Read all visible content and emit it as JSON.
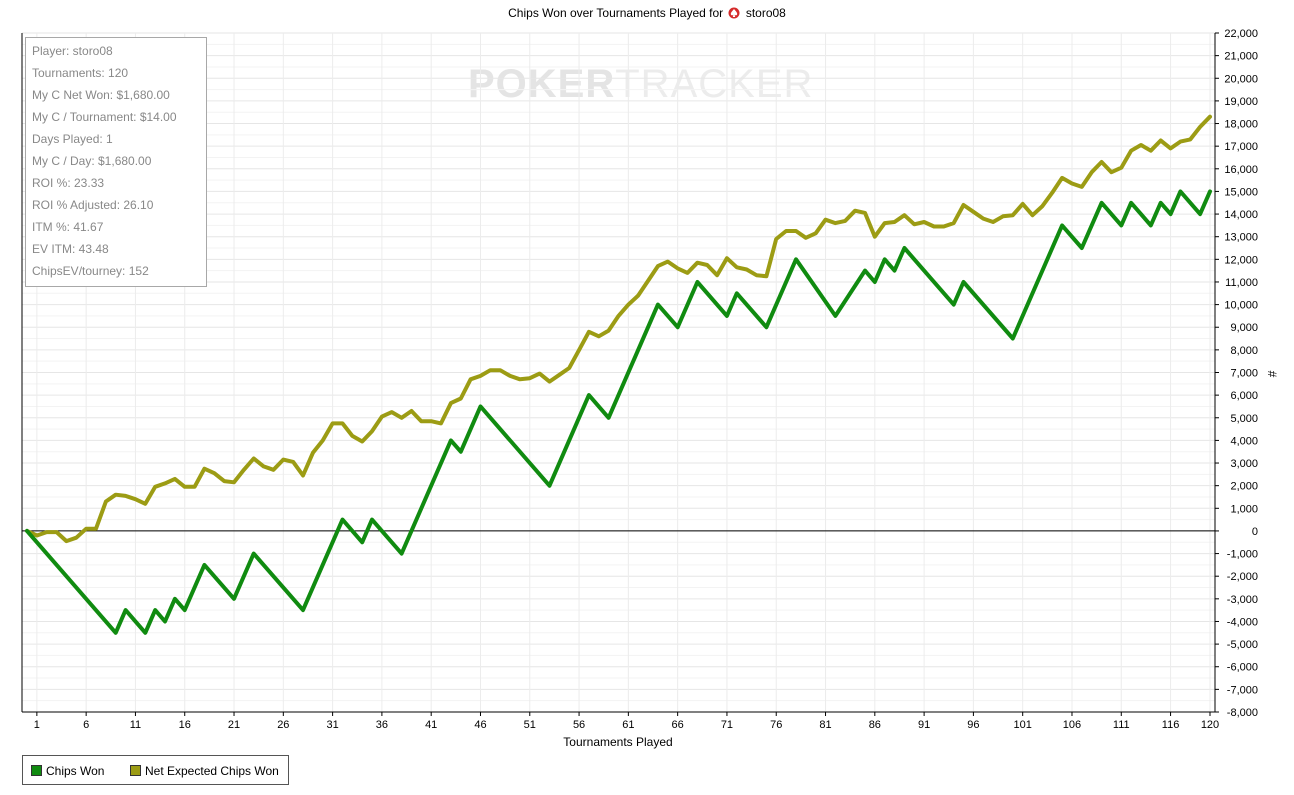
{
  "title": {
    "text": "Chips Won over Tournaments Played for",
    "player": "storo08",
    "icon": "pokerstars-spade-icon"
  },
  "watermark": {
    "part1": "POKER",
    "part2": "TRACKER"
  },
  "stats": [
    "Player: storo08",
    "Tournaments: 120",
    "My C Net Won: $1,680.00",
    "My C / Tournament: $14.00",
    "Days Played: 1",
    "My C / Day: $1,680.00",
    "ROI %: 23.33",
    "ROI % Adjusted: 26.10",
    "ITM %: 41.67",
    "EV ITM: 43.48",
    "ChipsEV/tourney: 152"
  ],
  "legend": [
    {
      "label": "Chips Won",
      "color": "#108b10"
    },
    {
      "label": "Net Expected Chips Won",
      "color": "#9c9c14"
    }
  ],
  "chart_data": {
    "type": "line",
    "title": "Chips Won over Tournaments Played for storo08",
    "xlabel": "Tournaments Played",
    "ylabel": "#",
    "xlim": [
      0,
      120
    ],
    "ylim": [
      -8000,
      22000
    ],
    "x_ticks": [
      "1",
      "6",
      "11",
      "16",
      "21",
      "26",
      "31",
      "36",
      "41",
      "46",
      "51",
      "56",
      "61",
      "66",
      "71",
      "76",
      "81",
      "86",
      "91",
      "96",
      "101",
      "106",
      "111",
      "116",
      "120"
    ],
    "y_ticks": [
      "-8,000",
      "-7,000",
      "-6,000",
      "-5,000",
      "-4,000",
      "-3,000",
      "-2,000",
      "-1,000",
      "0",
      "1,000",
      "2,000",
      "3,000",
      "4,000",
      "5,000",
      "6,000",
      "7,000",
      "8,000",
      "9,000",
      "10,000",
      "11,000",
      "12,000",
      "13,000",
      "14,000",
      "15,000",
      "16,000",
      "17,000",
      "18,000",
      "19,000",
      "20,000",
      "21,000",
      "22,000"
    ],
    "grid": true,
    "legend_position": "bottom-left",
    "series": [
      {
        "name": "Chips Won",
        "color": "#108b10",
        "points": [
          [
            0,
            0
          ],
          [
            9,
            -4500
          ],
          [
            10,
            -3500
          ],
          [
            12,
            -4500
          ],
          [
            13,
            -3500
          ],
          [
            14,
            -4000
          ],
          [
            15,
            -3000
          ],
          [
            16,
            -3500
          ],
          [
            18,
            -1500
          ],
          [
            21,
            -3000
          ],
          [
            23,
            -1000
          ],
          [
            28,
            -3500
          ],
          [
            32,
            500
          ],
          [
            34,
            -500
          ],
          [
            35,
            500
          ],
          [
            38,
            -1000
          ],
          [
            43,
            4000
          ],
          [
            44,
            3500
          ],
          [
            46,
            5500
          ],
          [
            53,
            2000
          ],
          [
            57,
            6000
          ],
          [
            59,
            5000
          ],
          [
            64,
            10000
          ],
          [
            66,
            9000
          ],
          [
            68,
            11000
          ],
          [
            71,
            9500
          ],
          [
            72,
            10500
          ],
          [
            75,
            9000
          ],
          [
            78,
            12000
          ],
          [
            82,
            9500
          ],
          [
            85,
            11500
          ],
          [
            86,
            11000
          ],
          [
            87,
            12000
          ],
          [
            88,
            11500
          ],
          [
            89,
            12500
          ],
          [
            94,
            10000
          ],
          [
            95,
            11000
          ],
          [
            100,
            8500
          ],
          [
            105,
            13500
          ],
          [
            107,
            12500
          ],
          [
            109,
            14500
          ],
          [
            111,
            13500
          ],
          [
            112,
            14500
          ],
          [
            114,
            13500
          ],
          [
            115,
            14500
          ],
          [
            116,
            14000
          ],
          [
            117,
            15000
          ],
          [
            119,
            14000
          ],
          [
            120,
            15000
          ]
        ]
      },
      {
        "name": "Net Expected Chips Won",
        "color": "#9c9c14",
        "points": [
          [
            0,
            0
          ],
          [
            1,
            -200
          ],
          [
            2,
            -50
          ],
          [
            3,
            -50
          ],
          [
            4,
            -450
          ],
          [
            5,
            -300
          ],
          [
            6,
            100
          ],
          [
            7,
            100
          ],
          [
            8,
            1300
          ],
          [
            9,
            1600
          ],
          [
            10,
            1550
          ],
          [
            11,
            1400
          ],
          [
            12,
            1200
          ],
          [
            13,
            1950
          ],
          [
            14,
            2100
          ],
          [
            15,
            2300
          ],
          [
            16,
            1950
          ],
          [
            17,
            1950
          ],
          [
            18,
            2750
          ],
          [
            19,
            2550
          ],
          [
            20,
            2200
          ],
          [
            21,
            2150
          ],
          [
            22,
            2700
          ],
          [
            23,
            3200
          ],
          [
            24,
            2850
          ],
          [
            25,
            2700
          ],
          [
            26,
            3150
          ],
          [
            27,
            3050
          ],
          [
            28,
            2450
          ],
          [
            29,
            3450
          ],
          [
            30,
            4000
          ],
          [
            31,
            4750
          ],
          [
            32,
            4750
          ],
          [
            33,
            4200
          ],
          [
            34,
            3950
          ],
          [
            35,
            4400
          ],
          [
            36,
            5050
          ],
          [
            37,
            5250
          ],
          [
            38,
            5000
          ],
          [
            39,
            5300
          ],
          [
            40,
            4850
          ],
          [
            41,
            4850
          ],
          [
            42,
            4750
          ],
          [
            43,
            5650
          ],
          [
            44,
            5850
          ],
          [
            45,
            6700
          ],
          [
            46,
            6850
          ],
          [
            47,
            7100
          ],
          [
            48,
            7100
          ],
          [
            49,
            6850
          ],
          [
            50,
            6700
          ],
          [
            51,
            6750
          ],
          [
            52,
            6950
          ],
          [
            53,
            6600
          ],
          [
            54,
            6900
          ],
          [
            55,
            7200
          ],
          [
            56,
            8000
          ],
          [
            57,
            8800
          ],
          [
            58,
            8600
          ],
          [
            59,
            8850
          ],
          [
            60,
            9500
          ],
          [
            61,
            10000
          ],
          [
            62,
            10400
          ],
          [
            63,
            11050
          ],
          [
            64,
            11700
          ],
          [
            65,
            11900
          ],
          [
            66,
            11600
          ],
          [
            67,
            11400
          ],
          [
            68,
            11850
          ],
          [
            69,
            11750
          ],
          [
            70,
            11300
          ],
          [
            71,
            12050
          ],
          [
            72,
            11650
          ],
          [
            73,
            11550
          ],
          [
            74,
            11300
          ],
          [
            75,
            11250
          ],
          [
            76,
            12900
          ],
          [
            77,
            13250
          ],
          [
            78,
            13250
          ],
          [
            79,
            12950
          ],
          [
            80,
            13150
          ],
          [
            81,
            13750
          ],
          [
            82,
            13600
          ],
          [
            83,
            13700
          ],
          [
            84,
            14150
          ],
          [
            85,
            14050
          ],
          [
            86,
            13000
          ],
          [
            87,
            13600
          ],
          [
            88,
            13650
          ],
          [
            89,
            13950
          ],
          [
            90,
            13550
          ],
          [
            91,
            13650
          ],
          [
            92,
            13450
          ],
          [
            93,
            13450
          ],
          [
            94,
            13600
          ],
          [
            95,
            14400
          ],
          [
            96,
            14100
          ],
          [
            97,
            13800
          ],
          [
            98,
            13650
          ],
          [
            99,
            13900
          ],
          [
            100,
            13950
          ],
          [
            101,
            14450
          ],
          [
            102,
            13950
          ],
          [
            103,
            14350
          ],
          [
            104,
            14950
          ],
          [
            105,
            15600
          ],
          [
            106,
            15350
          ],
          [
            107,
            15200
          ],
          [
            108,
            15850
          ],
          [
            109,
            16300
          ],
          [
            110,
            15850
          ],
          [
            111,
            16050
          ],
          [
            112,
            16800
          ],
          [
            113,
            17050
          ],
          [
            114,
            16800
          ],
          [
            115,
            17250
          ],
          [
            116,
            16900
          ],
          [
            117,
            17200
          ],
          [
            118,
            17300
          ],
          [
            119,
            17850
          ],
          [
            120,
            18300
          ]
        ]
      }
    ]
  }
}
